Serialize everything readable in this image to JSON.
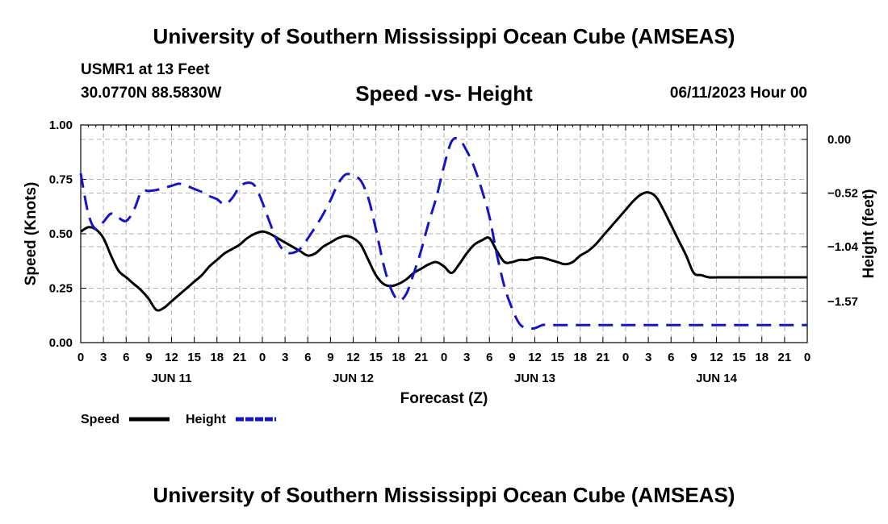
{
  "header": {
    "title": "University of Southern Mississippi Ocean Cube (AMSEAS)",
    "station": "USMR1 at 13 Feet",
    "latlon": "30.0770N  88.5830W",
    "subtitle": "Speed -vs- Height",
    "datetime": "06/11/2023 Hour 00",
    "footer_title": "University of Southern Mississippi Ocean Cube (AMSEAS)"
  },
  "chart_data": {
    "type": "line",
    "title": "Speed -vs- Height",
    "xlabel": "Forecast (Z)",
    "ylabel_left": "Speed (Knots)",
    "ylabel_right": "Height (feet)",
    "x_unit": "forecast hour",
    "x_range": [
      0,
      96
    ],
    "x_tick_step_hours": 3,
    "x_tick_labels": [
      "0",
      "3",
      "6",
      "9",
      "12",
      "15",
      "18",
      "21",
      "0",
      "3",
      "6",
      "9",
      "12",
      "15",
      "18",
      "21",
      "0",
      "3",
      "6",
      "9",
      "12",
      "15",
      "18",
      "21",
      "0",
      "3",
      "6",
      "9",
      "12",
      "15",
      "18",
      "21",
      "0"
    ],
    "date_labels": [
      {
        "label": "JUN 11",
        "hour": 12
      },
      {
        "label": "JUN 12",
        "hour": 36
      },
      {
        "label": "JUN 13",
        "hour": 60
      },
      {
        "label": "JUN 14",
        "hour": 84
      }
    ],
    "y_left": {
      "range": [
        0,
        1
      ],
      "ticks": [
        0.0,
        0.25,
        0.5,
        0.75,
        1.0
      ],
      "tick_labels": [
        "0.00",
        "0.25",
        "0.50",
        "0.75",
        "1.00"
      ]
    },
    "y_right": {
      "range": [
        -1.97,
        0.14
      ],
      "ticks": [
        0.0,
        -0.52,
        -1.04,
        -1.57
      ],
      "tick_labels": [
        "0.00",
        "−0.52",
        "−1.04",
        "−1.57"
      ]
    },
    "grid": true,
    "legend": {
      "position": "bottom-left"
    },
    "series": [
      {
        "name": "Speed",
        "axis": "left",
        "color": "#000000",
        "dash": "solid",
        "x": [
          0,
          1,
          2,
          3,
          4,
          5,
          6,
          7,
          8,
          9,
          10,
          11,
          12,
          13,
          14,
          15,
          16,
          17,
          18,
          19,
          20,
          21,
          22,
          23,
          24,
          25,
          26,
          27,
          28,
          29,
          30,
          31,
          32,
          33,
          34,
          35,
          36,
          37,
          38,
          39,
          40,
          41,
          42,
          43,
          44,
          45,
          46,
          47,
          48,
          49,
          50,
          51,
          52,
          53,
          54,
          55,
          56,
          57,
          58,
          59,
          60,
          61,
          62,
          63,
          64,
          65,
          66,
          67,
          68,
          69,
          70,
          71,
          72,
          73,
          74,
          75,
          76,
          77,
          78,
          79,
          80,
          81,
          82,
          83,
          84,
          85,
          86,
          87,
          88,
          89,
          90,
          91,
          92,
          93,
          94,
          95,
          96
        ],
        "values": [
          0.51,
          0.53,
          0.52,
          0.48,
          0.4,
          0.33,
          0.3,
          0.27,
          0.24,
          0.2,
          0.15,
          0.16,
          0.19,
          0.22,
          0.25,
          0.28,
          0.31,
          0.35,
          0.38,
          0.41,
          0.43,
          0.45,
          0.48,
          0.5,
          0.51,
          0.5,
          0.48,
          0.46,
          0.44,
          0.42,
          0.4,
          0.41,
          0.44,
          0.46,
          0.48,
          0.49,
          0.48,
          0.45,
          0.38,
          0.31,
          0.27,
          0.26,
          0.27,
          0.29,
          0.32,
          0.34,
          0.36,
          0.37,
          0.35,
          0.32,
          0.36,
          0.41,
          0.45,
          0.47,
          0.48,
          0.42,
          0.37,
          0.37,
          0.38,
          0.38,
          0.39,
          0.39,
          0.38,
          0.37,
          0.36,
          0.37,
          0.4,
          0.42,
          0.45,
          0.49,
          0.53,
          0.57,
          0.61,
          0.65,
          0.68,
          0.69,
          0.67,
          0.61,
          0.54,
          0.47,
          0.4,
          0.32,
          0.31,
          0.3,
          0.3,
          0.3,
          0.3,
          0.3,
          0.3,
          0.3,
          0.3,
          0.3,
          0.3,
          0.3,
          0.3,
          0.3,
          0.3
        ]
      },
      {
        "name": "Height",
        "axis": "right",
        "color": "#1515c8",
        "dash": "dashed",
        "x": [
          0,
          1,
          2,
          3,
          4,
          5,
          6,
          7,
          8,
          9,
          10,
          11,
          12,
          13,
          14,
          15,
          16,
          17,
          18,
          19,
          20,
          21,
          22,
          23,
          24,
          25,
          26,
          27,
          28,
          29,
          30,
          31,
          32,
          33,
          34,
          35,
          36,
          37,
          38,
          39,
          40,
          41,
          42,
          43,
          44,
          45,
          46,
          47,
          48,
          49,
          50,
          51,
          52,
          53,
          54,
          55,
          56,
          57,
          58,
          59,
          60,
          61,
          62,
          63,
          64,
          65,
          66,
          67,
          68,
          69,
          70,
          71,
          72,
          73,
          74,
          75,
          76,
          77,
          78,
          79,
          80,
          81,
          82,
          83,
          84,
          85,
          86,
          87,
          88,
          89,
          90,
          91,
          92,
          93,
          94,
          95,
          96
        ],
        "values": [
          -0.33,
          -0.72,
          -0.87,
          -0.8,
          -0.72,
          -0.76,
          -0.79,
          -0.69,
          -0.51,
          -0.5,
          -0.49,
          -0.47,
          -0.45,
          -0.43,
          -0.45,
          -0.48,
          -0.51,
          -0.55,
          -0.58,
          -0.63,
          -0.57,
          -0.46,
          -0.42,
          -0.45,
          -0.61,
          -0.81,
          -0.99,
          -1.09,
          -1.1,
          -1.06,
          -0.96,
          -0.85,
          -0.73,
          -0.59,
          -0.43,
          -0.34,
          -0.35,
          -0.4,
          -0.57,
          -0.87,
          -1.21,
          -1.45,
          -1.56,
          -1.5,
          -1.3,
          -1.07,
          -0.8,
          -0.56,
          -0.26,
          -0.02,
          0.0,
          -0.11,
          -0.27,
          -0.49,
          -0.75,
          -1.12,
          -1.43,
          -1.64,
          -1.79,
          -1.83,
          -1.83,
          -1.8,
          -1.8,
          -1.8,
          -1.8,
          -1.8,
          -1.8,
          -1.8,
          -1.8,
          -1.8,
          -1.8,
          -1.8,
          -1.8,
          -1.8,
          -1.8,
          -1.8,
          -1.8,
          -1.8,
          -1.8,
          -1.8,
          -1.8,
          -1.8,
          -1.8,
          -1.8,
          -1.8,
          -1.8,
          -1.8,
          -1.8,
          -1.8,
          -1.8,
          -1.8,
          -1.8,
          -1.8,
          -1.8,
          -1.8,
          -1.8,
          -1.8
        ]
      }
    ]
  }
}
